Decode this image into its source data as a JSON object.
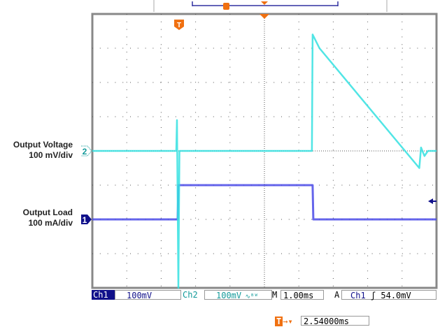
{
  "labels": {
    "ch2": {
      "line1": "Output Voltage",
      "line2": "100 mV/div"
    },
    "ch1": {
      "line1": "Output Load",
      "line2": "100 mA/div"
    }
  },
  "status_bar": {
    "ch1_label": "Ch1",
    "ch1_scale": "100mV",
    "ch2_label": "Ch2",
    "ch2_scale": "100mV",
    "ch2_bw_icon": "bandwidth-limit-icon",
    "timebase_label": "M",
    "timebase": "1.00ms",
    "trigger_label": "A",
    "trigger_source": "Ch1",
    "trigger_slope_icon": "rising-edge-icon",
    "trigger_level": "54.0mV",
    "trigger_position": "2.54000ms"
  },
  "markers": {
    "ch1": "1",
    "ch2": "2",
    "trigger": "T"
  },
  "colors": {
    "ch1": "#4a4ae8",
    "ch2": "#33e0e0",
    "ch1_tag": "#10108a",
    "ch2_tag": "#129a9a",
    "trigger": "#f07010",
    "grid": "#555555"
  },
  "chart_data": {
    "type": "line",
    "title": "",
    "xlabel": "",
    "ylabel": "",
    "grid": true,
    "x_divisions": 10,
    "y_divisions": 8,
    "x_unit_per_div": "1.00ms",
    "xlim_ms": [
      -5,
      5
    ],
    "series": [
      {
        "name": "Ch1",
        "unit": "mA",
        "per_div": 100,
        "offset_div": -2,
        "points": [
          [
            -5,
            0
          ],
          [
            -2.52,
            0
          ],
          [
            -2.5,
            100
          ],
          [
            1.4,
            100
          ],
          [
            1.42,
            0
          ],
          [
            5,
            0
          ]
        ]
      },
      {
        "name": "Ch2",
        "unit": "mV",
        "per_div": 100,
        "offset_div": 0,
        "points": [
          [
            -5,
            0
          ],
          [
            -2.56,
            0
          ],
          [
            -2.54,
            90
          ],
          [
            -2.5,
            -400
          ],
          [
            -2.47,
            0
          ],
          [
            1.38,
            0
          ],
          [
            1.4,
            340
          ],
          [
            1.6,
            300
          ],
          [
            4.5,
            -50
          ],
          [
            4.55,
            10
          ],
          [
            4.65,
            -15
          ],
          [
            4.75,
            0
          ],
          [
            5,
            0
          ]
        ]
      }
    ]
  }
}
